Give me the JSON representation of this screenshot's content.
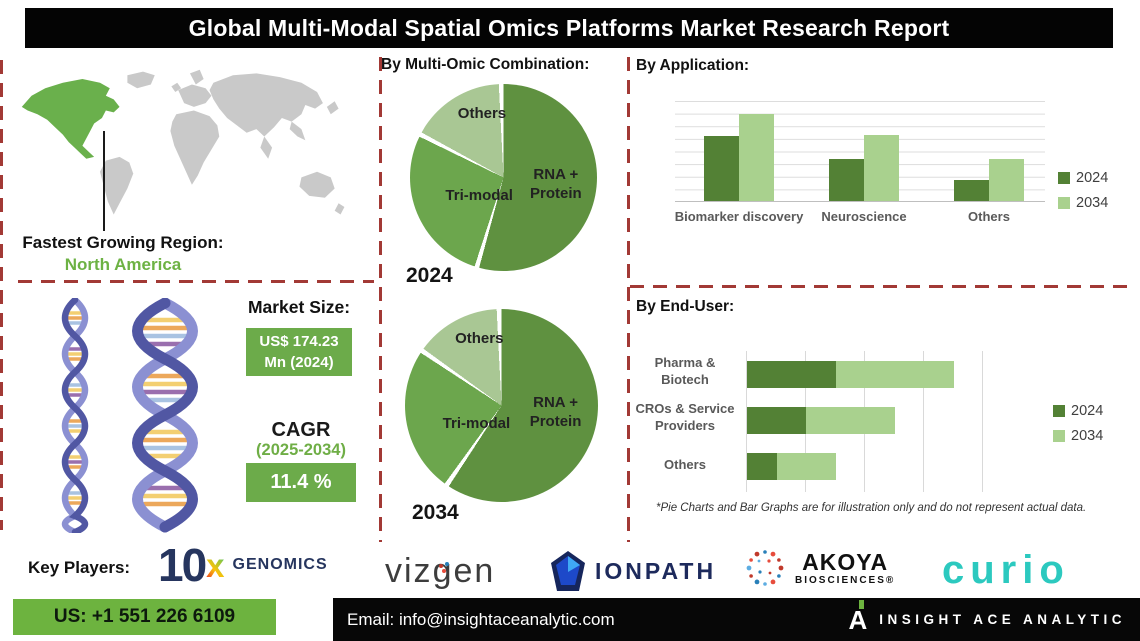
{
  "title": "Global Multi-Modal Spatial Omics Platforms Market Research Report",
  "region": {
    "label": "Fastest Growing Region:",
    "value": "North America"
  },
  "market": {
    "size_label": "Market Size:",
    "size_value": "US$ 174.23 Mn (2024)",
    "cagr_label": "CAGR",
    "cagr_period": "(2025-2034)",
    "cagr_value": "11.4 %"
  },
  "colors": {
    "series_2024": "#538135",
    "series_2034": "#a9d18e",
    "pie_dark": "#5f9140",
    "pie_mid": "#6ca64d",
    "pie_light": "#a9c794",
    "map_highlight": "#6ab04c",
    "map_base": "#c9c9c9",
    "dashed_line": "#a23935",
    "footer_green": "#6db33f",
    "region_green": "#6db244"
  },
  "chart_data": [
    {
      "id": "pie2024",
      "type": "pie",
      "title": "By Multi-Omic Combination:",
      "year_label": "2024",
      "slices": [
        {
          "label": "RNA + Protein",
          "value": 55,
          "color": "#5f9140"
        },
        {
          "label": "Tri-modal",
          "value": 28,
          "color": "#6ca64d"
        },
        {
          "label": "Others",
          "value": 17,
          "color": "#a9c794"
        }
      ]
    },
    {
      "id": "pie2034",
      "type": "pie",
      "title": "By Multi-Omic Combination:",
      "year_label": "2034",
      "slices": [
        {
          "label": "RNA + Protein",
          "value": 60,
          "color": "#5f9140"
        },
        {
          "label": "Tri-modal",
          "value": 25,
          "color": "#6ca64d"
        },
        {
          "label": "Others",
          "value": 15,
          "color": "#a9c794"
        }
      ]
    },
    {
      "id": "application",
      "type": "bar",
      "title": "By Application:",
      "categories": [
        "Biomarker discovery",
        "Neuroscience",
        "Others"
      ],
      "series": [
        {
          "name": "2024",
          "color": "#538135",
          "values": [
            5.2,
            3.4,
            1.7
          ]
        },
        {
          "name": "2034",
          "color": "#a9d18e",
          "values": [
            7.0,
            5.3,
            3.4
          ]
        }
      ],
      "ylim": [
        0,
        8
      ],
      "grid": true,
      "legend_position": "right"
    },
    {
      "id": "enduser",
      "type": "bar",
      "subtype": "horizontal-stacked",
      "title": "By End-User:",
      "categories": [
        "Pharma & Biotech",
        "CROs & Service Providers",
        "Others"
      ],
      "series": [
        {
          "name": "2024",
          "color": "#538135",
          "values": [
            1.5,
            1.0,
            0.5
          ]
        },
        {
          "name": "2034",
          "color": "#a9d18e",
          "values": [
            2.0,
            1.5,
            1.0
          ]
        }
      ],
      "xlim": [
        0,
        4
      ],
      "grid": true,
      "legend_position": "right",
      "footnote": "*Pie Charts and Bar Graphs are for illustration only and do not represent actual data."
    }
  ],
  "key_players": {
    "label": "Key Players:",
    "companies": [
      "10x Genomics",
      "Vizgen",
      "IonPath",
      "Akoya Biosciences",
      "Curio"
    ],
    "logos": {
      "tenx": {
        "num": "10",
        "x": "x",
        "word": "GENOMICS"
      },
      "vizgen": {
        "pre": "viz",
        "g": "g",
        "post": "en"
      },
      "ionpath": {
        "word": "IONPATH"
      },
      "akoya": {
        "word": "AKOYA",
        "sub": "BIOSCIENCES®"
      },
      "curio": {
        "word": "curio"
      }
    }
  },
  "footer": {
    "phone": "US: +1 551 226 6109",
    "email": "Email: info@insightaceanalytic.com",
    "brand_mark": "A",
    "brand": "INSIGHT ACE ANALYTIC"
  }
}
